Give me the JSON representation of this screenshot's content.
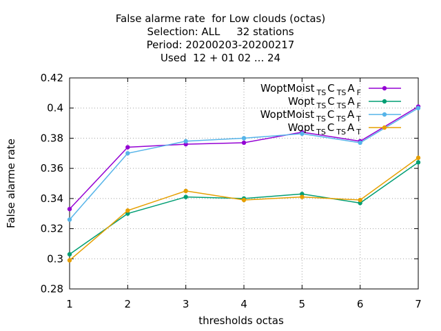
{
  "chart_data": {
    "type": "line",
    "title_lines": [
      "False alarme rate  for Low clouds (octas)",
      "Selection: ALL     32 stations",
      "Period: 20200203-20200217",
      "Used  12 + 01 02 ... 24"
    ],
    "xlabel": "thresholds octas",
    "ylabel": "False alarme rate",
    "x": [
      1,
      2,
      3,
      4,
      5,
      6,
      7
    ],
    "xlim": [
      1,
      7
    ],
    "ylim": [
      0.28,
      0.42
    ],
    "xticks": [
      "1",
      "2",
      "3",
      "4",
      "5",
      "6",
      "7"
    ],
    "yticks": [
      "0.28",
      "0.3",
      "0.32",
      "0.34",
      "0.36",
      "0.38",
      "0.4",
      "0.42"
    ],
    "grid": true,
    "legend_position": "top-right",
    "series": [
      {
        "name": "WoptMoist TS CTS A F",
        "base": "WoptMoist",
        "parts": [
          [
            "TS",
            true
          ],
          [
            "C",
            false
          ],
          [
            "TS",
            true
          ],
          [
            "A",
            false
          ],
          [
            "F",
            true
          ]
        ],
        "color": "#9400d3",
        "marker": "filled-circle",
        "values": [
          0.333,
          0.374,
          0.376,
          0.377,
          0.384,
          0.378,
          0.401
        ]
      },
      {
        "name": "Wopt TS CTS A F",
        "base": "Wopt",
        "parts": [
          [
            "TS",
            true
          ],
          [
            "C",
            false
          ],
          [
            "TS",
            true
          ],
          [
            "A",
            false
          ],
          [
            "F",
            true
          ]
        ],
        "color": "#009e73",
        "marker": "filled-circle",
        "values": [
          0.303,
          0.33,
          0.341,
          0.34,
          0.343,
          0.337,
          0.364
        ]
      },
      {
        "name": "WoptMoist TS CTS A T",
        "base": "WoptMoist",
        "parts": [
          [
            "TS",
            true
          ],
          [
            "C",
            false
          ],
          [
            "TS",
            true
          ],
          [
            "A",
            false
          ],
          [
            "T",
            true
          ]
        ],
        "color": "#56b4e9",
        "marker": "filled-circle",
        "values": [
          0.326,
          0.37,
          0.378,
          0.38,
          0.383,
          0.377,
          0.4
        ]
      },
      {
        "name": "Wopt TS CTS A T",
        "base": "Wopt",
        "parts": [
          [
            "TS",
            true
          ],
          [
            "C",
            false
          ],
          [
            "TS",
            true
          ],
          [
            "A",
            false
          ],
          [
            "T",
            true
          ]
        ],
        "color": "#e69f00",
        "marker": "filled-circle",
        "values": [
          0.299,
          0.332,
          0.345,
          0.339,
          0.341,
          0.339,
          0.367
        ]
      }
    ]
  }
}
